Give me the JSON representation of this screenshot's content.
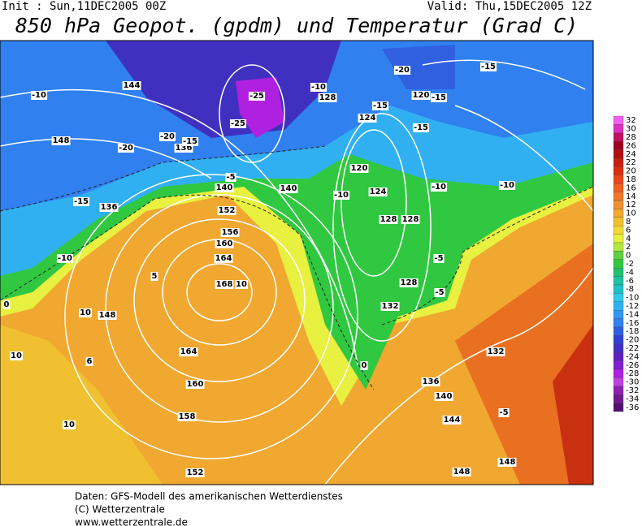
{
  "header": {
    "init": "Init : Sun,11DEC2005 00Z",
    "valid": "Valid: Thu,15DEC2005 12Z",
    "title": "850 hPa Geopot. (gpdm) und Temperatur (Grad C)"
  },
  "colorbar": {
    "labels": [
      32,
      30,
      28,
      26,
      24,
      22,
      20,
      18,
      16,
      14,
      12,
      10,
      8,
      6,
      4,
      2,
      0,
      -2,
      -4,
      -6,
      -8,
      -10,
      -12,
      -14,
      -16,
      -18,
      -20,
      -22,
      -24,
      -26,
      -28,
      -30,
      -32,
      -34,
      -36
    ],
    "colors": [
      "#f060f0",
      "#e030c0",
      "#c01060",
      "#a00020",
      "#b01010",
      "#c82010",
      "#d83010",
      "#e84818",
      "#f06020",
      "#f07828",
      "#f09030",
      "#f0a830",
      "#f0c030",
      "#f0d838",
      "#e8f040",
      "#b0e840",
      "#60d040",
      "#30c840",
      "#20c070",
      "#20c0a0",
      "#20c0c8",
      "#30c8e8",
      "#30b0f0",
      "#3098f0",
      "#3080f0",
      "#3060e0",
      "#3040d0",
      "#4030c0",
      "#6020c0",
      "#8020d0",
      "#b020e0",
      "#c040e0",
      "#9020b0",
      "#701890",
      "#501070"
    ]
  },
  "map": {
    "labels": [
      "136",
      "144",
      "148",
      "136",
      "140",
      "148",
      "152",
      "156",
      "160",
      "164",
      "168",
      "164",
      "160",
      "158",
      "152",
      "140",
      "128",
      "120",
      "124",
      "120",
      "124",
      "128",
      "128",
      "132",
      "128",
      "136",
      "140",
      "144",
      "148",
      "148",
      "132",
      "-20",
      "-20",
      "-25",
      "-25",
      "-15",
      "-15",
      "-10",
      "-10",
      "-15",
      "-10",
      "-5",
      "-10",
      "-15",
      "-20",
      "-15",
      "-10",
      "-5",
      "0",
      "5",
      "10",
      "10",
      "10",
      "10",
      "6",
      "-5",
      "-5",
      "0",
      "-10",
      "-15"
    ]
  },
  "footer": {
    "line1": "Daten: GFS-Modell des amerikanischen Wetterdienstes",
    "line2": "(C) Wetterzentrale",
    "line3": "www.wetterzentrale.de"
  }
}
